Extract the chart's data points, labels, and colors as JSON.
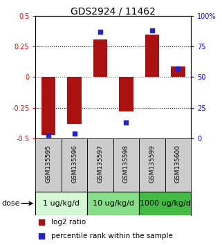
{
  "title": "GDS2924 / 11462",
  "samples": [
    "GSM135595",
    "GSM135596",
    "GSM135597",
    "GSM135598",
    "GSM135599",
    "GSM135600"
  ],
  "log2_ratio": [
    -0.47,
    -0.38,
    0.31,
    -0.28,
    0.35,
    0.09
  ],
  "percentile": [
    3,
    4,
    87,
    13,
    88,
    57
  ],
  "bar_color": "#aa1111",
  "dot_color": "#2222cc",
  "ylim_left": [
    -0.5,
    0.5
  ],
  "ylim_right": [
    0,
    100
  ],
  "yticks_left": [
    -0.5,
    -0.25,
    0,
    0.25,
    0.5
  ],
  "yticks_right": [
    0,
    25,
    50,
    75,
    100
  ],
  "ytick_labels_right": [
    "0",
    "25",
    "50",
    "75",
    "100%"
  ],
  "gridlines_black": [
    0.25,
    -0.25
  ],
  "gridline_red": 0,
  "dose_groups": [
    {
      "label": "1 ug/kg/d",
      "samples": [
        0,
        1
      ],
      "color": "#d4f7d4"
    },
    {
      "label": "10 ug/kg/d",
      "samples": [
        2,
        3
      ],
      "color": "#88dd88"
    },
    {
      "label": "1000 ug/kg/d",
      "samples": [
        4,
        5
      ],
      "color": "#44bb44"
    }
  ],
  "dose_label": "dose",
  "legend_red": "log2 ratio",
  "legend_blue": "percentile rank within the sample",
  "bar_width": 0.55,
  "dot_size": 22,
  "sample_bg_color": "#cccccc",
  "title_fontsize": 10,
  "tick_fontsize": 7,
  "dose_fontsize": 8,
  "legend_fontsize": 7.5,
  "sample_fontsize": 6.5
}
